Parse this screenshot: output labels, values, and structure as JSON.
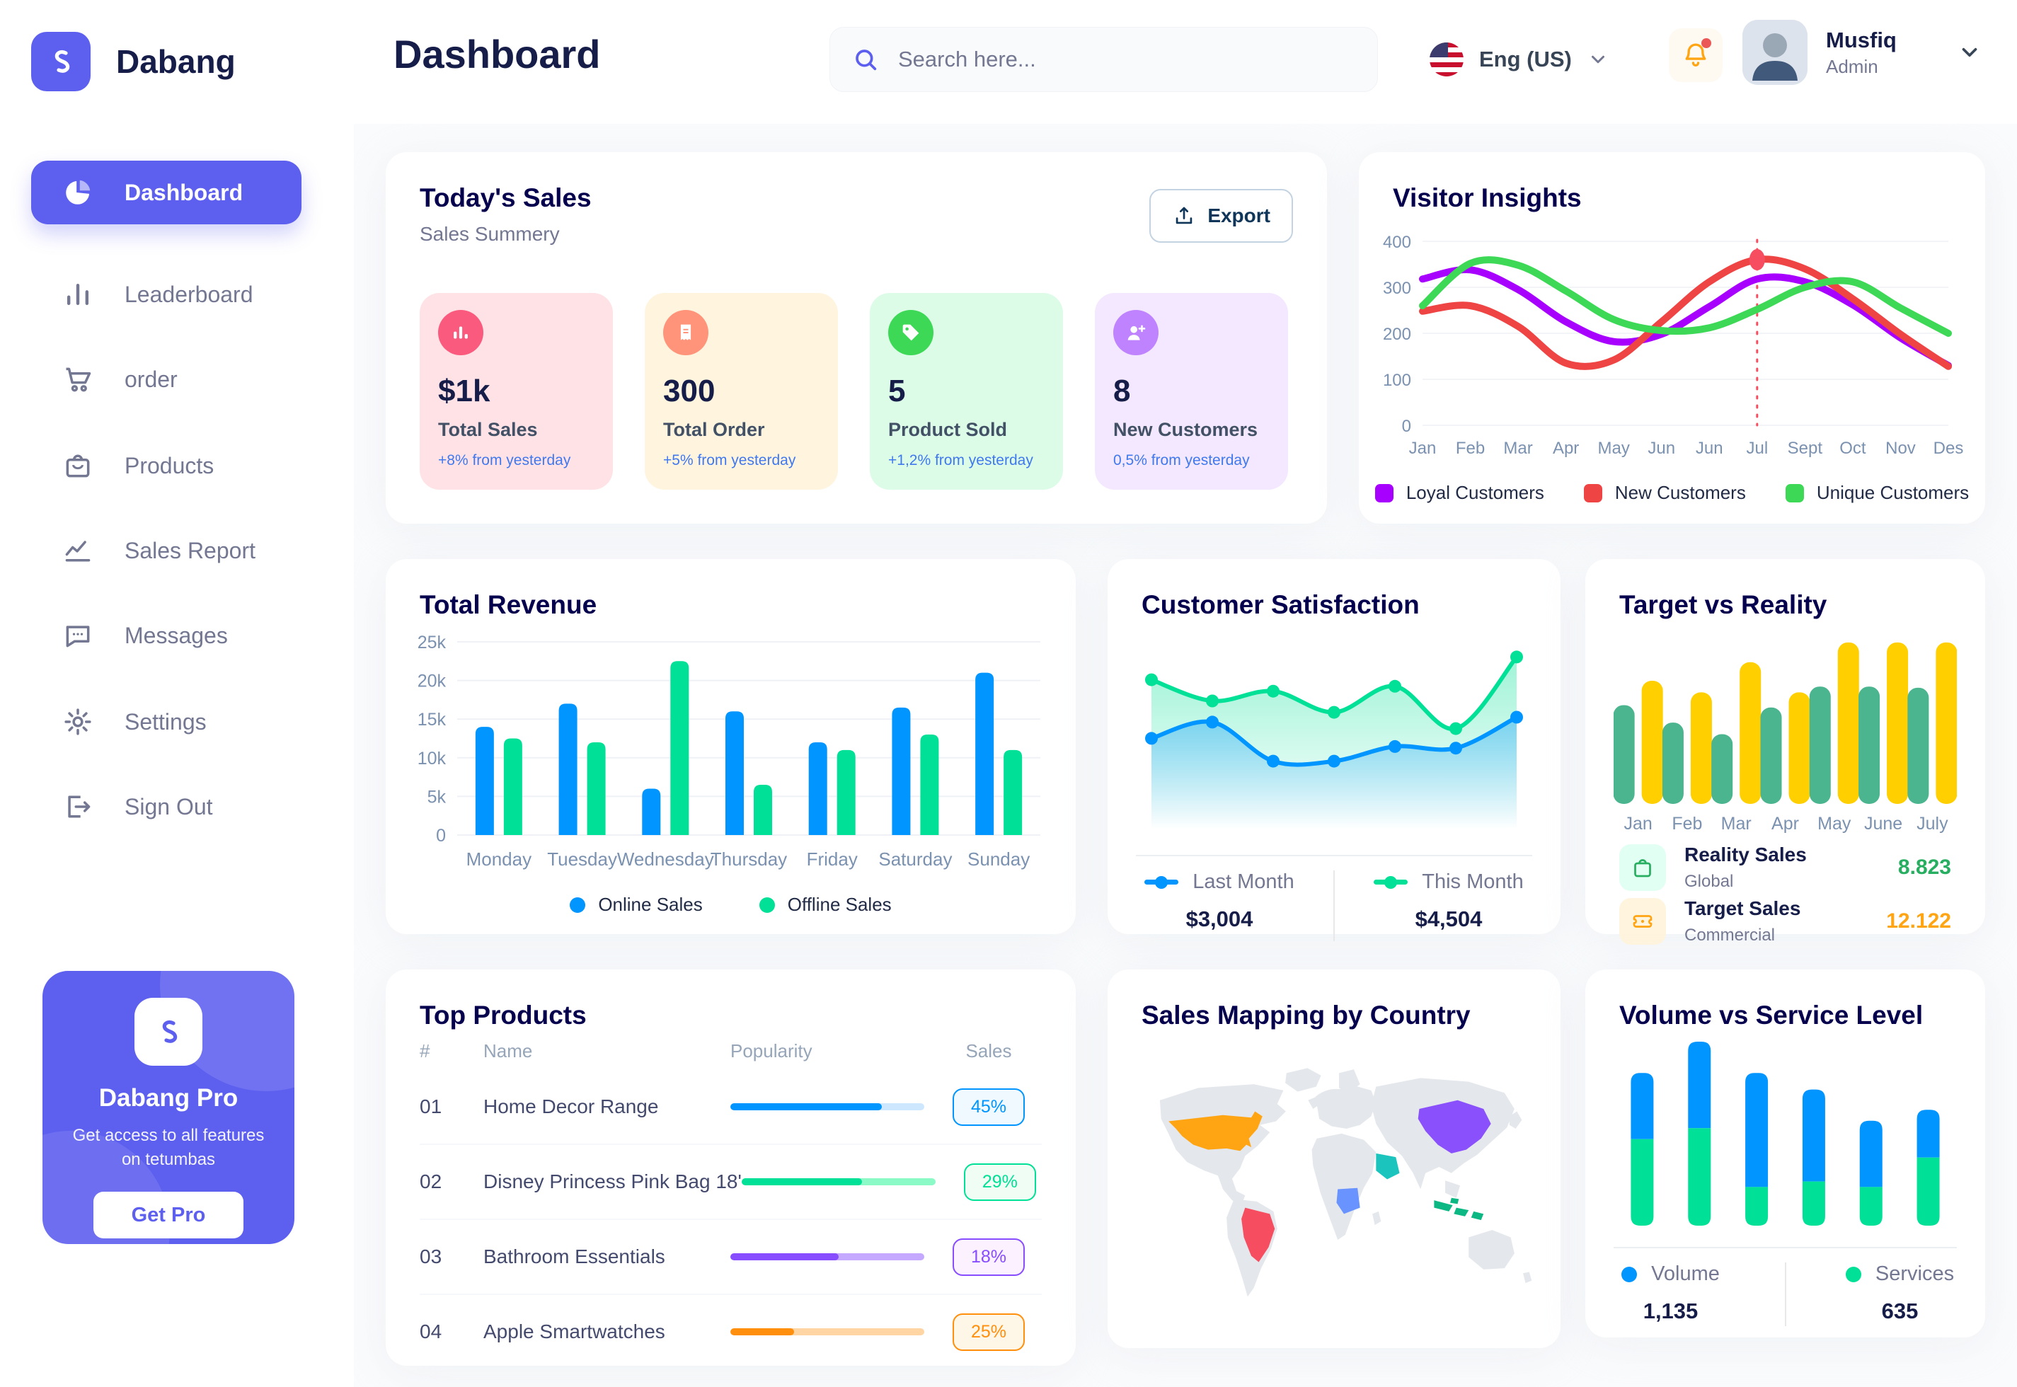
{
  "colors": {
    "brand": "#5D5FEF",
    "page_bg": "#FAFBFC",
    "card_title": "#05004E",
    "page_title": "#151D48",
    "muted_text": "#737791",
    "axis_label": "#7B91B0",
    "table_header": "#96A5B8",
    "delta_blue": "#4079ED",
    "bell_orange": "#FFA412",
    "notification_dot": "#EB5757",
    "map_land": "#E4E7EB",
    "map_us": "#FFA412",
    "map_brazil": "#F64E60",
    "map_china": "#8950FC",
    "map_saudi": "#1BC5BD",
    "map_drc": "#6993FF",
    "map_indonesia": "#0BB783"
  },
  "brand": {
    "name": "Dabang"
  },
  "header": {
    "page_title": "Dashboard",
    "search_placeholder": "Search here...",
    "language": "Eng (US)",
    "user": {
      "name": "Musfiq",
      "role": "Admin"
    }
  },
  "sidebar": {
    "items": [
      {
        "label": "Dashboard",
        "active": true
      },
      {
        "label": "Leaderboard"
      },
      {
        "label": "order"
      },
      {
        "label": "Products"
      },
      {
        "label": "Sales Report"
      },
      {
        "label": "Messages"
      },
      {
        "label": "Settings"
      },
      {
        "label": "Sign Out"
      }
    ],
    "pro_card": {
      "title": "Dabang Pro",
      "subtitle": "Get access to all features on tetumbas",
      "button": "Get Pro"
    }
  },
  "todays_sales": {
    "title": "Today's Sales",
    "subtitle": "Sales Summery",
    "export_label": "Export",
    "cards": [
      {
        "value": "$1k",
        "label": "Total Sales",
        "delta": "+8% from yesterday",
        "bg": "#FFE2E5",
        "icon_bg": "#FA5A7D"
      },
      {
        "value": "300",
        "label": "Total Order",
        "delta": "+5% from yesterday",
        "bg": "#FFF4DE",
        "icon_bg": "#FF947A"
      },
      {
        "value": "5",
        "label": "Product Sold",
        "delta": "+1,2% from yesterday",
        "bg": "#DCFCE7",
        "icon_bg": "#3CD856"
      },
      {
        "value": "8",
        "label": "New Customers",
        "delta": "0,5% from yesterday",
        "bg": "#F3E8FF",
        "icon_bg": "#BF83FF"
      }
    ]
  },
  "chart_data": {
    "visitor_insights": {
      "type": "line",
      "title": "Visitor Insights",
      "x": [
        "Jan",
        "Feb",
        "Mar",
        "Apr",
        "May",
        "Jun",
        "Jun",
        "Jul",
        "Sept",
        "Oct",
        "Nov",
        "Des"
      ],
      "ylim": [
        0,
        400
      ],
      "yticks": [
        0,
        100,
        200,
        300,
        400
      ],
      "series": [
        {
          "name": "Loyal Customers",
          "color": "#A700FF",
          "values": [
            318,
            338,
            295,
            225,
            182,
            198,
            258,
            318,
            312,
            262,
            190,
            130
          ]
        },
        {
          "name": "New Customers",
          "color": "#EF4444",
          "values": [
            248,
            260,
            215,
            135,
            142,
            225,
            312,
            360,
            340,
            275,
            198,
            128
          ]
        },
        {
          "name": "Unique Customers",
          "color": "#3CD856",
          "values": [
            260,
            352,
            348,
            292,
            230,
            206,
            212,
            252,
            300,
            312,
            255,
            200
          ]
        }
      ],
      "highlight": {
        "series": "New Customers",
        "x_label": "Jul",
        "index": 7,
        "value": 360
      }
    },
    "total_revenue": {
      "type": "bar",
      "title": "Total Revenue",
      "categories": [
        "Monday",
        "Tuesday",
        "Wednesday",
        "Thursday",
        "Friday",
        "Saturday",
        "Sunday"
      ],
      "ylim": [
        0,
        25
      ],
      "ytick_labels": [
        "0",
        "5k",
        "10k",
        "15k",
        "20k",
        "25k"
      ],
      "series": [
        {
          "name": "Online Sales",
          "color": "#0095FF",
          "values": [
            14,
            17,
            6,
            16,
            12,
            16.5,
            21
          ]
        },
        {
          "name": "Offline Sales",
          "color": "#00E096",
          "values": [
            12.5,
            12,
            22.5,
            6.5,
            11,
            13,
            11
          ]
        }
      ]
    },
    "customer_satisfaction": {
      "type": "area",
      "title": "Customer Satisfaction",
      "ylim": [
        0,
        100
      ],
      "unit": "relative",
      "series": [
        {
          "name": "Last Month",
          "color": "#0095FF",
          "total": "$3,004",
          "values": [
            42,
            52,
            28,
            28,
            37,
            36,
            55
          ]
        },
        {
          "name": "This Month",
          "color": "#00E096",
          "total": "$4,504",
          "values": [
            78,
            65,
            71,
            58,
            74,
            48,
            92
          ]
        }
      ]
    },
    "target_vs_reality": {
      "type": "bar",
      "title": "Target vs Reality",
      "categories": [
        "Jan",
        "Feb",
        "Mar",
        "Apr",
        "May",
        "June",
        "July"
      ],
      "series": [
        {
          "name": "Reality Sales",
          "color": "#4AB58E",
          "values": [
            8.5,
            7,
            6,
            8.3,
            10.1,
            10.1,
            10
          ]
        },
        {
          "name": "Target Sales",
          "color": "#FFCF00",
          "values": [
            10.6,
            9.6,
            12.2,
            9.6,
            13.9,
            13.9,
            13.9
          ]
        }
      ],
      "legend": [
        {
          "label": "Reality Sales",
          "sub": "Global",
          "value": "8.823",
          "value_color": "#27AE60",
          "icon_bg": "#E2FFF3"
        },
        {
          "label": "Target Sales",
          "sub": "Commercial",
          "value": "12.122",
          "value_color": "#FFA412",
          "icon_bg": "#FFF4DE"
        }
      ]
    },
    "volume_vs_service": {
      "type": "stacked-bar",
      "title": "Volume vs Service Level",
      "unit": "relative",
      "series": [
        {
          "name": "Volume",
          "color": "#0095FF",
          "total": "1,135",
          "values": [
            36,
            47,
            62,
            50,
            36,
            26
          ]
        },
        {
          "name": "Services",
          "color": "#00E096",
          "total": "635",
          "values": [
            47,
            53,
            21,
            24,
            21,
            37
          ]
        }
      ]
    }
  },
  "top_products": {
    "title": "Top Products",
    "headers": [
      "#",
      "Name",
      "Popularity",
      "Sales"
    ],
    "rows": [
      {
        "num": "01",
        "name": "Home Decor Range",
        "popularity": 78,
        "sales": "45%",
        "fill": "#0095FF",
        "track": "#CDE7FF",
        "badge_bg": "#F0F9FF"
      },
      {
        "num": "02",
        "name": "Disney Princess Pink Bag 18'",
        "popularity": 62,
        "sales": "29%",
        "fill": "#00E096",
        "track": "#8CFAC7",
        "badge_bg": "#F0FDF4"
      },
      {
        "num": "03",
        "name": "Bathroom Essentials",
        "popularity": 56,
        "sales": "18%",
        "fill": "#884DFF",
        "track": "#C5A8FF",
        "badge_bg": "#FBF1FF"
      },
      {
        "num": "04",
        "name": "Apple Smartwatches",
        "popularity": 33,
        "sales": "25%",
        "fill": "#FF8F0D",
        "track": "#FFD5A4",
        "badge_bg": "#FEF6E6"
      }
    ]
  },
  "sales_mapping": {
    "title": "Sales Mapping by Country",
    "countries": [
      {
        "name": "United States",
        "color": "#FFA412"
      },
      {
        "name": "Brazil",
        "color": "#F64E60"
      },
      {
        "name": "China",
        "color": "#8950FC"
      },
      {
        "name": "Saudi Arabia",
        "color": "#1BC5BD"
      },
      {
        "name": "DR Congo",
        "color": "#6993FF"
      },
      {
        "name": "Indonesia",
        "color": "#0BB783"
      }
    ]
  }
}
